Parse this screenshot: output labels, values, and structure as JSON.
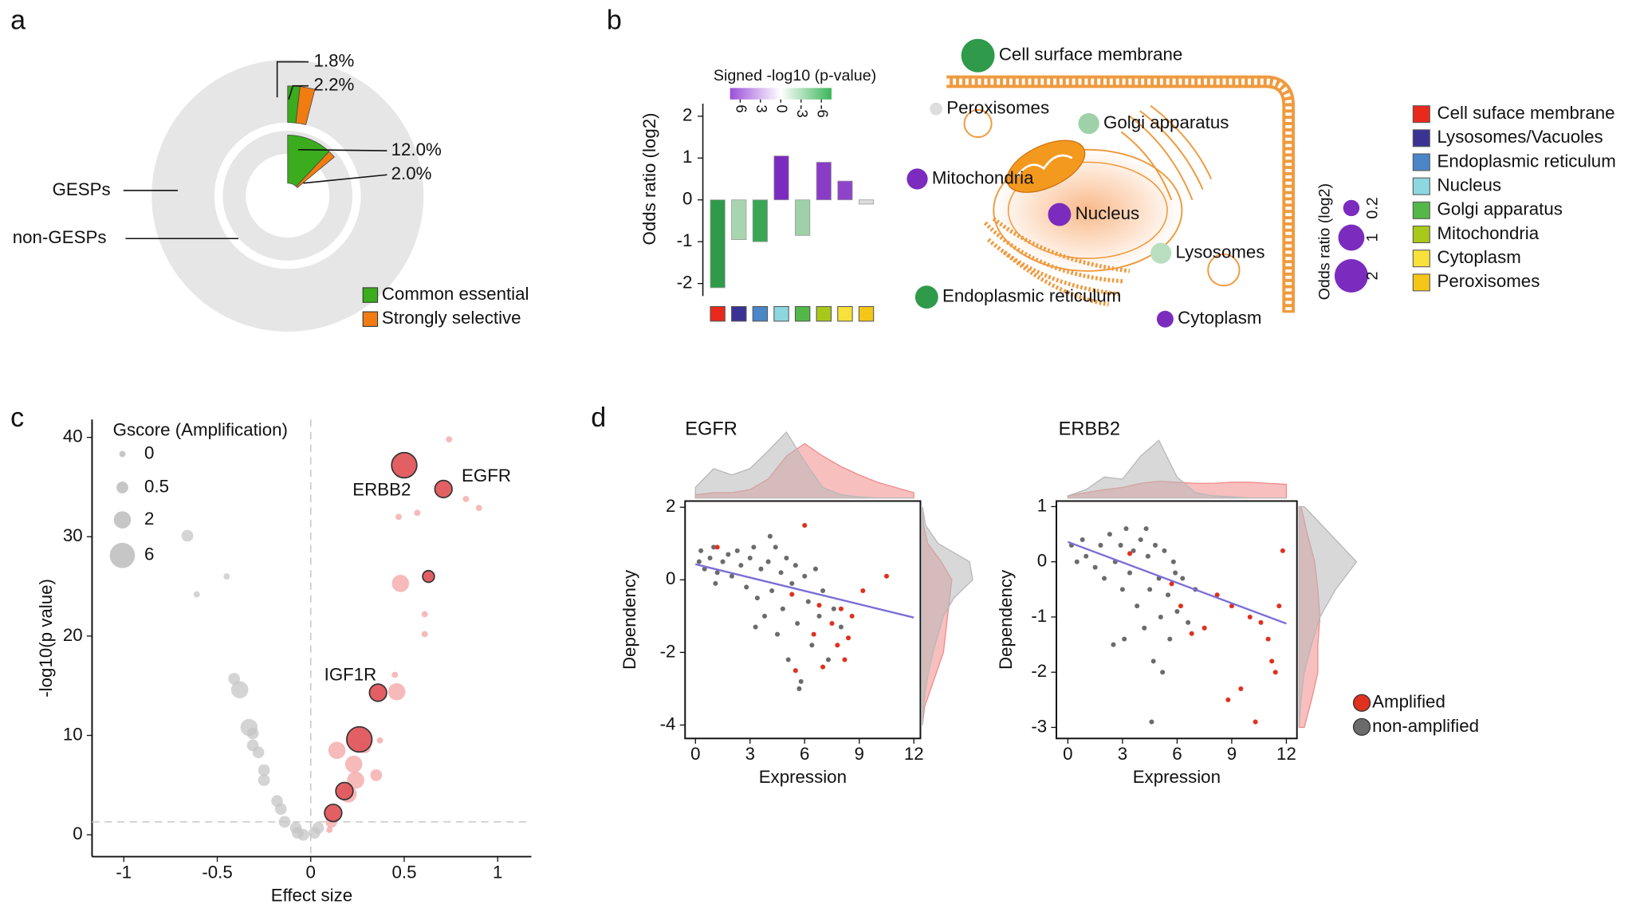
{
  "chart_data": [
    {
      "type": "donut",
      "panel": "a",
      "rings": [
        {
          "name": "GESPs",
          "values": [
            1.8,
            2.2
          ],
          "value_labels": [
            "1.8%",
            "2.2%"
          ]
        },
        {
          "name": "non-GESPs",
          "values": [
            12.0,
            2.0
          ],
          "value_labels": [
            "12.0%",
            "2.0%"
          ]
        }
      ],
      "series": [
        {
          "name": "Common essential",
          "color": "#3aac1e"
        },
        {
          "name": "Strongly selective",
          "color": "#f07c12"
        }
      ],
      "ring_color": "#e6e6e6"
    },
    {
      "type": "bar",
      "panel": "b",
      "ylabel": "Odds ratio (log2)",
      "categories": [
        "Cell suface membrane",
        "Lysosomes/Vacuoles",
        "Endoplasmic reticulum",
        "Nucleus",
        "Golgi apparatus",
        "Mitochondria",
        "Cytoplasm",
        "Peroxisomes"
      ],
      "category_colors": [
        "#e8291c",
        "#3b3394",
        "#4a86c8",
        "#8dd7e0",
        "#54b848",
        "#a8c81a",
        "#f7e13a",
        "#f5c618"
      ],
      "values": [
        -2.1,
        -0.95,
        -1.0,
        1.05,
        -0.85,
        0.9,
        0.45,
        -0.1
      ],
      "bar_colors": [
        "#2e9a4a",
        "#a8d5b0",
        "#3aa655",
        "#7b2cbf",
        "#9fd1a8",
        "#8a3cc6",
        "#8e44c9",
        "#dddddd"
      ],
      "ylim": [
        -2.3,
        2.3
      ],
      "yticks": [
        -2,
        -1,
        0,
        1,
        2
      ],
      "colorbar": {
        "title": "Signed -log10 (p-value)",
        "lim": [
          7.5,
          -7.5
        ],
        "ticks": [
          6,
          3,
          0,
          -3,
          -6
        ],
        "colors": [
          "#9b4fd8",
          "#ffffff",
          "#3cb55a"
        ]
      },
      "diagram": {
        "labels": [
          "Cell surface membrane",
          "Peroxisomes",
          "Golgi apparatus",
          "Mitochondria",
          "Nucleus",
          "Lysosomes",
          "Endoplasmic reticulum",
          "Cytoplasm"
        ],
        "colors": [
          "#2e9a4a",
          "#dddddd",
          "#9fd1a8",
          "#7b2cbf",
          "#7b2cbf",
          "#b9dfc0",
          "#2e9a4a",
          "#7b2cbf"
        ]
      },
      "size_legend": {
        "title": "Odds ratio (log2)",
        "values": [
          0.2,
          1,
          2
        ],
        "color": "#7b2cbf"
      }
    },
    {
      "type": "scatter",
      "panel": "c",
      "xlabel": "Effect size",
      "ylabel": "-log10(p value)",
      "xlim": [
        -1.17,
        1.18
      ],
      "xticks": [
        -1,
        -0.5,
        0,
        0.5,
        1
      ],
      "ylim": [
        -2.2,
        41.8
      ],
      "yticks": [
        0,
        10,
        20,
        30,
        40
      ],
      "reference_lines": {
        "x": [
          0
        ],
        "y": [
          1.3
        ]
      },
      "size_legend": {
        "title": "Gscore (Amplification)",
        "values": [
          0,
          0.5,
          2,
          6
        ]
      },
      "series": [
        {
          "color": "#c6c6c6",
          "x": [
            -0.66,
            -0.45,
            -0.61,
            -0.41,
            -0.38,
            -0.33,
            -0.31,
            -0.31,
            -0.28,
            -0.25,
            -0.25,
            -0.18,
            -0.16,
            -0.14,
            -0.08,
            -0.04,
            0.02,
            0.04,
            -0.07
          ],
          "y": [
            30.1,
            26,
            24.2,
            15.7,
            14.6,
            10.8,
            10.2,
            9,
            8.3,
            6.5,
            5.5,
            3.4,
            2.6,
            1.3,
            0.7,
            0,
            0.2,
            0.7,
            0.2
          ],
          "size": [
            0.5,
            0,
            0,
            0.5,
            2,
            2,
            0.5,
            0.5,
            0.5,
            0.5,
            0.5,
            0.5,
            0.5,
            0.5,
            0.5,
            0.5,
            0.5,
            0.5,
            0.5
          ]
        },
        {
          "color": "#f4a3a3",
          "x": [
            0.74,
            0.47,
            0.57,
            0.83,
            0.9,
            0.48,
            0.61,
            0.61,
            0.45,
            0.46,
            0.14,
            0.29,
            0.37,
            0.23,
            0.35,
            0.24,
            0.2,
            0.11,
            0.1
          ],
          "y": [
            39.8,
            32,
            32.4,
            33.8,
            32.9,
            25.3,
            22.2,
            20.2,
            16.1,
            14.4,
            8.5,
            8.8,
            9.5,
            7.1,
            6,
            5.5,
            4.1,
            1.3,
            0.5
          ],
          "size": [
            0,
            0,
            0,
            0,
            0,
            2,
            0,
            0,
            0,
            2,
            2,
            0.5,
            0,
            2,
            0.5,
            2,
            2,
            0.5,
            0
          ]
        },
        {
          "color": "#e0575c",
          "edgecolor": "#333333",
          "x": [
            0.5,
            0.71,
            0.63,
            0.36,
            0.26,
            0.18,
            0.12
          ],
          "y": [
            37.2,
            34.8,
            26,
            14.3,
            9.6,
            4.4,
            2.2
          ],
          "size": [
            6,
            2,
            0.5,
            2,
            6,
            2,
            2
          ]
        }
      ],
      "annotations": [
        "ERBB2",
        "EGFR",
        "IGF1R"
      ]
    },
    {
      "type": "scatter",
      "panel": "d",
      "title": "EGFR",
      "xlabel": "Expression",
      "ylabel": "Dependency",
      "xlim": [
        -0.57,
        12.36
      ],
      "xticks": [
        0,
        3,
        6,
        9,
        12
      ],
      "ylim": [
        -4.37,
        2.17
      ],
      "yticks": [
        -4,
        -2,
        0,
        2
      ],
      "series": [
        {
          "name": "Amplified",
          "color": "#e0301e",
          "x": [
            6,
            1.2,
            5.3,
            6.5,
            7.5,
            7.8,
            8,
            8.2,
            8.6,
            9.2,
            10.5,
            7,
            6.8,
            8.4,
            5.5
          ],
          "y": [
            1.5,
            0.9,
            -0.4,
            -1.5,
            -1.2,
            -1.8,
            -0.8,
            -2.2,
            -1,
            -0.3,
            0.1,
            -2.4,
            -0.7,
            -1.6,
            -2.5
          ]
        },
        {
          "name": "non-amplified",
          "color": "#6b6b6b",
          "x": [
            0.3,
            0.5,
            0.8,
            1,
            1.2,
            1.5,
            1.8,
            2,
            2.3,
            2.5,
            2.8,
            3,
            3.2,
            3.4,
            3.6,
            3.8,
            4,
            4.2,
            4.4,
            4.5,
            4.7,
            4.8,
            5,
            5.1,
            5.3,
            5.5,
            5.6,
            5.8,
            6,
            6.2,
            6.4,
            6.6,
            6.8,
            7,
            7.3,
            7.6,
            8,
            5.7,
            0.2,
            1.1,
            3.3,
            4.1
          ],
          "y": [
            0.8,
            0.3,
            0.6,
            0.9,
            0.2,
            0.5,
            0.7,
            0.1,
            0.8,
            0.4,
            -0.2,
            0.6,
            0.9,
            -0.5,
            0.3,
            -1,
            0.5,
            -0.3,
            0.9,
            -1.5,
            0.2,
            -0.8,
            0.6,
            -2.2,
            -0.1,
            0.4,
            -1.2,
            -2.8,
            0.1,
            -0.6,
            -1.8,
            0.3,
            -1,
            -0.3,
            -2.2,
            -0.8,
            -1.3,
            -3,
            0.5,
            -0.1,
            -1.3,
            1.2
          ]
        }
      ],
      "fit": {
        "x": [
          0,
          12
        ],
        "y": [
          0.43,
          -1.04
        ],
        "color": "#7a6fd6"
      },
      "x_density": {
        "grid": [
          0,
          1,
          2,
          3,
          4,
          5,
          6,
          7,
          8,
          9,
          10,
          11,
          12
        ],
        "colors": [
          "#f28b8b",
          "#b8b8b8"
        ],
        "values": [
          [
            3,
            5,
            5,
            8,
            18,
            40,
            52,
            40,
            30,
            22,
            15,
            10,
            5
          ],
          [
            10,
            28,
            22,
            28,
            45,
            63,
            35,
            10,
            3,
            1,
            0,
            0,
            0
          ]
        ]
      },
      "y_density": {
        "grid": [
          -4,
          -3.5,
          -3,
          -2.5,
          -2,
          -1.5,
          -1,
          -0.5,
          0,
          0.5,
          1,
          1.5,
          2
        ],
        "colors": [
          "#f28b8b",
          "#b8b8b8"
        ],
        "values": [
          [
            0,
            2,
            8,
            14,
            20,
            22,
            24,
            26,
            28,
            18,
            5,
            1,
            0
          ],
          [
            0,
            1,
            3,
            6,
            10,
            15,
            20,
            30,
            48,
            45,
            15,
            3,
            0
          ]
        ]
      }
    },
    {
      "type": "scatter",
      "title": "ERBB2",
      "xlabel": "Expression",
      "ylabel": "Dependency",
      "xlim": [
        -0.63,
        12.58
      ],
      "xticks": [
        0,
        3,
        6,
        9,
        12
      ],
      "ylim": [
        -3.2,
        1.1
      ],
      "yticks": [
        -3,
        -2,
        -1,
        0,
        1
      ],
      "series": [
        {
          "color": "#e0301e",
          "x": [
            3.4,
            5.7,
            6.2,
            7.5,
            8.2,
            9,
            9.5,
            10,
            10.3,
            11,
            11.2,
            11.4,
            11.8,
            8.8,
            11.6,
            6.8,
            10.6
          ],
          "y": [
            0.15,
            -0.4,
            -0.8,
            -1.2,
            -0.6,
            -0.8,
            -2.3,
            -1,
            -2.9,
            -1.4,
            -1.8,
            -2,
            0.2,
            -2.5,
            -0.8,
            -1.3,
            -1.1
          ]
        },
        {
          "color": "#6b6b6b",
          "x": [
            0.2,
            0.5,
            0.8,
            1,
            1.5,
            1.8,
            2,
            2.3,
            2.6,
            2.9,
            3,
            3.2,
            3.4,
            3.6,
            3.8,
            4,
            4.2,
            4.4,
            4.5,
            4.7,
            4.8,
            5,
            5.1,
            5.3,
            5.5,
            5.6,
            5.8,
            6,
            6.3,
            6.6,
            7,
            5.2,
            4.6,
            3.1,
            4.3,
            5.9,
            2.5
          ],
          "y": [
            0.3,
            0,
            0.4,
            0.1,
            -0.1,
            0.3,
            -0.3,
            0.5,
            0,
            0.3,
            -0.5,
            0.6,
            -0.2,
            0.2,
            -0.8,
            0.4,
            -1.2,
            0.1,
            -0.5,
            -1.8,
            0.3,
            -0.3,
            -1,
            0.2,
            -0.6,
            -1.4,
            0,
            -0.9,
            -0.3,
            -1.1,
            -0.5,
            -2,
            -2.9,
            -1.4,
            0.6,
            -0.2,
            -1.5
          ]
        }
      ],
      "fit": {
        "x": [
          0,
          12
        ],
        "y": [
          0.36,
          -1.12
        ],
        "color": "#7a6fd6"
      },
      "x_density": {
        "grid": [
          0,
          1,
          2,
          3,
          4,
          5,
          6,
          7,
          8,
          9,
          10,
          11,
          12
        ],
        "colors": [
          "#f28b8b",
          "#b8b8b8"
        ],
        "values": [
          [
            2,
            5,
            8,
            10,
            14,
            16,
            15,
            14,
            14,
            15,
            15,
            14,
            13
          ],
          [
            2,
            8,
            20,
            18,
            40,
            55,
            20,
            5,
            2,
            1,
            0,
            0,
            0
          ]
        ]
      },
      "y_density": {
        "grid": [
          -3,
          -2.5,
          -2,
          -1.5,
          -1,
          -0.5,
          0,
          0.5,
          1
        ],
        "colors": [
          "#f28b8b",
          "#b8b8b8"
        ],
        "values": [
          [
            5,
            12,
            18,
            18,
            20,
            18,
            15,
            8,
            2
          ],
          [
            0,
            2,
            5,
            12,
            20,
            35,
            55,
            30,
            5
          ]
        ]
      }
    }
  ]
}
